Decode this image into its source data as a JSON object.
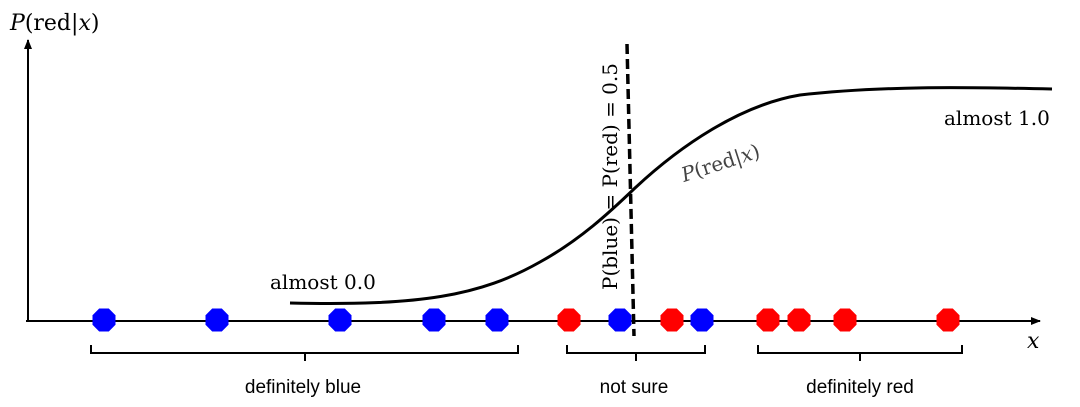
{
  "axes": {
    "y_label_prefix": "P",
    "y_label_open": "(red|",
    "y_label_var": "x",
    "y_label_close": ")",
    "x_label": "x"
  },
  "curve": {
    "label_prefix": "P",
    "label_open": "(red|",
    "label_var": "x",
    "label_close": ")",
    "low_label": "almost 0.0",
    "high_label": "almost 1.0"
  },
  "boundary": {
    "label": "P(blue) = P(red) = 0.5"
  },
  "groups": [
    {
      "label": "definitely blue"
    },
    {
      "label": "not sure"
    },
    {
      "label": "definitely red"
    }
  ],
  "colors": {
    "blue": "#0000ff",
    "red": "#ff0000",
    "ink": "#000000"
  },
  "points": [
    {
      "color": "blue"
    },
    {
      "color": "blue"
    },
    {
      "color": "blue"
    },
    {
      "color": "blue"
    },
    {
      "color": "blue"
    },
    {
      "color": "red"
    },
    {
      "color": "blue"
    },
    {
      "color": "red"
    },
    {
      "color": "blue"
    },
    {
      "color": "red"
    },
    {
      "color": "red"
    },
    {
      "color": "red"
    },
    {
      "color": "red"
    }
  ]
}
